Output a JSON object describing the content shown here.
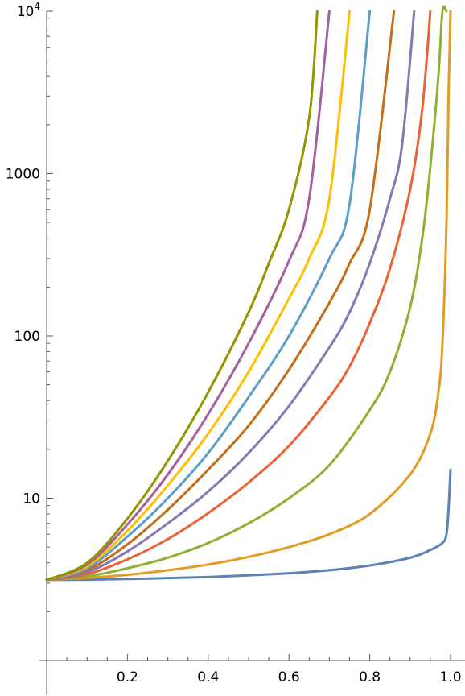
{
  "chart_data": {
    "type": "line",
    "title": "",
    "xlabel": "",
    "ylabel": "",
    "x_axis": {
      "range": [
        0,
        1.0
      ],
      "ticks": [
        0.2,
        0.4,
        0.6,
        0.8,
        1.0
      ],
      "tick_labels": [
        "0.2",
        "0.4",
        "0.6",
        "0.8",
        "1.0"
      ]
    },
    "y_axis": {
      "scale": "log",
      "range": [
        1,
        10000
      ],
      "major_ticks": [
        10,
        100,
        1000,
        10000
      ],
      "tick_labels": [
        {
          "value": 10,
          "base": "10",
          "exp": ""
        },
        {
          "value": 100,
          "base": "100",
          "exp": ""
        },
        {
          "value": 1000,
          "base": "1000",
          "exp": ""
        },
        {
          "value": 10000,
          "base": "10",
          "exp": "4"
        }
      ]
    },
    "grid": false,
    "legend": "none",
    "series": [
      {
        "color": "#5e81b5",
        "x": [
          0,
          0.1,
          0.2,
          0.3,
          0.4,
          0.5,
          0.6,
          0.7,
          0.8,
          0.9,
          0.95,
          0.98,
          0.99,
          0.995,
          1.0
        ],
        "y": [
          3.14,
          3.15,
          3.18,
          3.22,
          3.27,
          3.35,
          3.45,
          3.6,
          3.85,
          4.3,
          4.8,
          5.3,
          6.0,
          8.5,
          15
        ]
      },
      {
        "color": "#e19c24",
        "x": [
          0,
          0.1,
          0.2,
          0.3,
          0.4,
          0.5,
          0.6,
          0.7,
          0.8,
          0.9,
          0.95,
          0.97,
          0.98,
          0.99,
          0.995,
          1.0
        ],
        "y": [
          3.14,
          3.23,
          3.37,
          3.6,
          3.9,
          4.35,
          5.0,
          6.0,
          8.0,
          14,
          25,
          45,
          90,
          500,
          3000,
          10000
        ]
      },
      {
        "color": "#8fb032",
        "x": [
          0,
          0.1,
          0.2,
          0.3,
          0.4,
          0.5,
          0.6,
          0.7,
          0.8,
          0.85,
          0.9,
          0.93,
          0.95,
          0.97,
          0.98,
          0.99
        ],
        "y": [
          3.14,
          3.3,
          3.7,
          4.3,
          5.3,
          7.0,
          10,
          16,
          35,
          60,
          150,
          400,
          1100,
          4000,
          10000,
          10000
        ]
      },
      {
        "color": "#eb6235",
        "x": [
          0,
          0.1,
          0.2,
          0.3,
          0.4,
          0.5,
          0.6,
          0.7,
          0.75,
          0.8,
          0.85,
          0.9,
          0.93,
          0.95
        ],
        "y": [
          3.14,
          3.4,
          4.2,
          5.6,
          8.1,
          12.5,
          21,
          42,
          65,
          120,
          260,
          800,
          2500,
          10000
        ]
      },
      {
        "color": "#8778b3",
        "x": [
          0,
          0.1,
          0.2,
          0.3,
          0.4,
          0.5,
          0.6,
          0.7,
          0.75,
          0.8,
          0.85,
          0.88,
          0.91
        ],
        "y": [
          3.14,
          3.5,
          4.7,
          7.0,
          11,
          19,
          37,
          85,
          140,
          280,
          700,
          1500,
          10000
        ]
      },
      {
        "color": "#c56e1a",
        "x": [
          0,
          0.1,
          0.2,
          0.3,
          0.4,
          0.5,
          0.6,
          0.7,
          0.75,
          0.8,
          0.86
        ],
        "y": [
          3.14,
          3.6,
          5.2,
          8.5,
          15,
          28,
          62,
          160,
          280,
          600,
          10000
        ]
      },
      {
        "color": "#5d9ec7",
        "x": [
          0,
          0.1,
          0.2,
          0.3,
          0.4,
          0.5,
          0.6,
          0.7,
          0.75,
          0.8
        ],
        "y": [
          3.14,
          3.7,
          5.8,
          10,
          19,
          42,
          100,
          300,
          650,
          10000
        ]
      },
      {
        "color": "#ffbf00",
        "x": [
          0,
          0.1,
          0.2,
          0.3,
          0.4,
          0.5,
          0.6,
          0.65,
          0.7,
          0.75
        ],
        "y": [
          3.14,
          3.8,
          6.3,
          12,
          25,
          60,
          170,
          300,
          700,
          10000
        ]
      },
      {
        "color": "#a5609d",
        "x": [
          0,
          0.1,
          0.2,
          0.3,
          0.4,
          0.5,
          0.6,
          0.65,
          0.7
        ],
        "y": [
          3.14,
          3.9,
          6.9,
          14,
          33,
          90,
          290,
          700,
          10000
        ]
      },
      {
        "color": "#929600",
        "x": [
          0,
          0.1,
          0.2,
          0.3,
          0.4,
          0.5,
          0.55,
          0.6,
          0.65,
          0.67
        ],
        "y": [
          3.14,
          4.0,
          7.5,
          17,
          45,
          140,
          280,
          600,
          2200,
          10000
        ]
      }
    ]
  }
}
